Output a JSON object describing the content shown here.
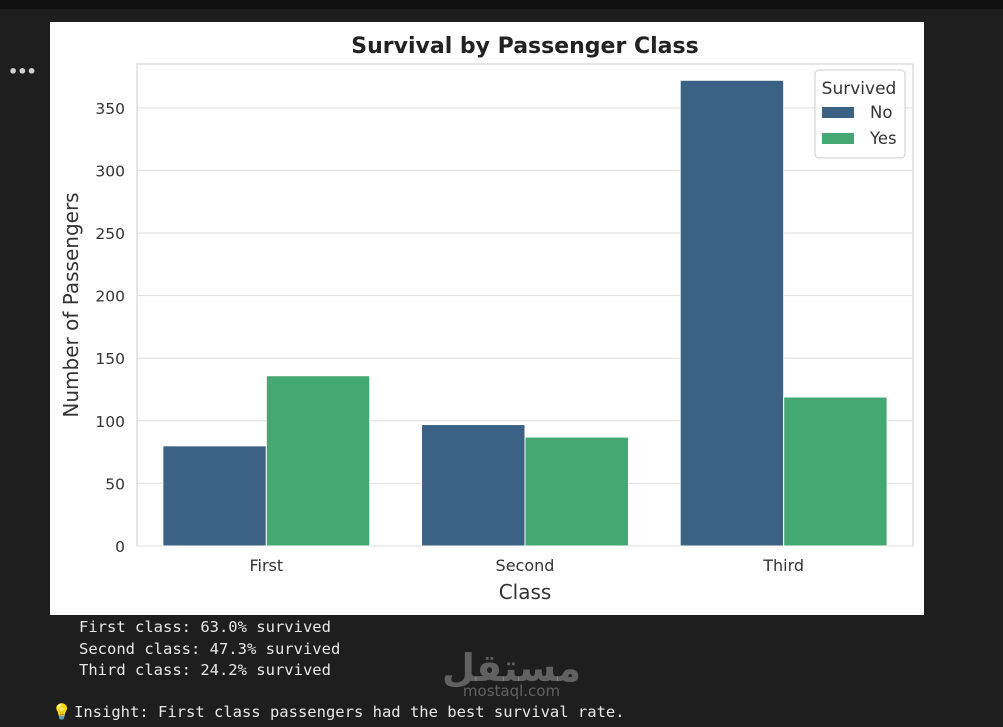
{
  "cell": {
    "more_label": "•••"
  },
  "chart_data": {
    "type": "bar",
    "title": "Survival by Passenger Class",
    "xlabel": "Class",
    "ylabel": "Number of Passengers",
    "categories": [
      "First",
      "Second",
      "Third"
    ],
    "series": [
      {
        "name": "No",
        "values": [
          80,
          97,
          372
        ],
        "color": "#3b6185"
      },
      {
        "name": "Yes",
        "values": [
          136,
          87,
          119
        ],
        "color": "#43a872"
      }
    ],
    "ylim": [
      0,
      385
    ],
    "yticks": [
      0,
      50,
      100,
      150,
      200,
      250,
      300,
      350
    ],
    "legend": {
      "title": "Survived",
      "placement": "top-right"
    },
    "grid": true
  },
  "output_lines": [
    "First class: 63.0% survived",
    "Second class: 47.3% survived",
    "Third class: 24.2% survived"
  ],
  "insight": {
    "icon": "lightbulb-icon",
    "text": "Insight: First class passengers had the best survival rate."
  },
  "watermark": {
    "arabic": "مستقل",
    "latin": "mostaql.com"
  }
}
